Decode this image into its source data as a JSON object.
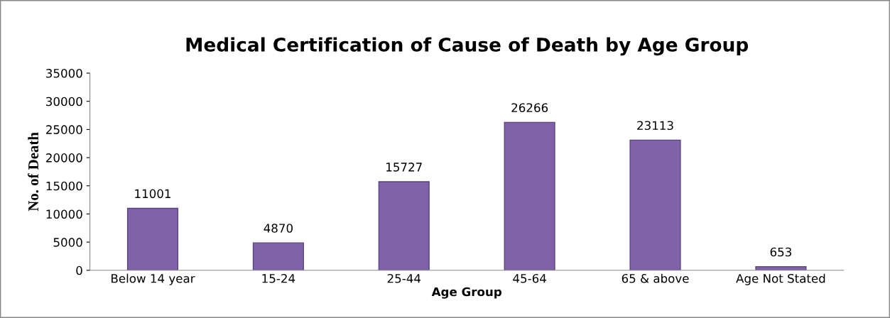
{
  "chart_data": {
    "type": "bar",
    "title": "Medical Certification of Cause of Death by Age Group",
    "xlabel": "Age Group",
    "ylabel": "No. of Death",
    "categories": [
      "Below 14 year",
      "15-24",
      "25-44",
      "45-64",
      "65 & above",
      "Age Not Stated"
    ],
    "values": [
      11001,
      4870,
      15727,
      26266,
      23113,
      653
    ],
    "color": "#7f62a8",
    "ylim": [
      0,
      35000
    ],
    "yticks": [
      0,
      5000,
      10000,
      15000,
      20000,
      25000,
      30000,
      35000
    ],
    "grid": false,
    "data_labels": true
  }
}
